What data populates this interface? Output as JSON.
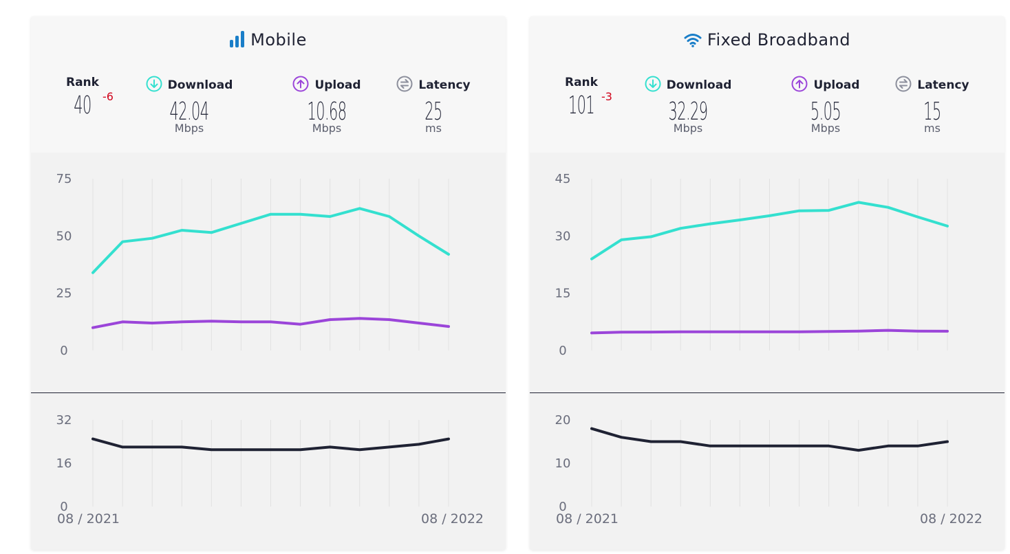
{
  "chart_data": [
    {
      "type": "line",
      "title": "Mobile",
      "stats": {
        "rank": {
          "label": "Rank",
          "value": "40",
          "change": "-6"
        },
        "download": {
          "label": "Download",
          "value": "42.04",
          "unit": "Mbps"
        },
        "upload": {
          "label": "Upload",
          "value": "10.68",
          "unit": "Mbps"
        },
        "latency": {
          "label": "Latency",
          "value": "25",
          "unit": "ms"
        }
      },
      "x_labels": [
        "08 / 2021",
        "08 / 2022"
      ],
      "speed_chart": {
        "ylim": [
          0,
          75
        ],
        "yticks": [
          "0",
          "25",
          "50",
          "75"
        ],
        "series": [
          {
            "color": "#34e0cf",
            "values": [
              34,
              47.5,
              49,
              52.5,
              51.5,
              55.5,
              59.5,
              59.5,
              58.5,
              62,
              58.5,
              50,
              42
            ]
          },
          {
            "color": "#9b45d9",
            "values": [
              10,
              12.5,
              12,
              12.5,
              12.8,
              12.5,
              12.5,
              11.5,
              13.5,
              14,
              13.5,
              12,
              10.5
            ]
          }
        ]
      },
      "latency_chart": {
        "ylim": [
          0,
          32
        ],
        "yticks": [
          "0",
          "16",
          "32"
        ],
        "series": [
          {
            "color": "#1f2233",
            "values": [
              25,
              22,
              22,
              22,
              21,
              21,
              21,
              21,
              22,
              21,
              22,
              23,
              25
            ]
          }
        ]
      }
    },
    {
      "type": "line",
      "title": "Fixed Broadband",
      "stats": {
        "rank": {
          "label": "Rank",
          "value": "101",
          "change": "-3"
        },
        "download": {
          "label": "Download",
          "value": "32.29",
          "unit": "Mbps"
        },
        "upload": {
          "label": "Upload",
          "value": "5.05",
          "unit": "Mbps"
        },
        "latency": {
          "label": "Latency",
          "value": "15",
          "unit": "ms"
        }
      },
      "x_labels": [
        "08 / 2021",
        "08 / 2022"
      ],
      "speed_chart": {
        "ylim": [
          0,
          45
        ],
        "yticks": [
          "0",
          "15",
          "30",
          "45"
        ],
        "series": [
          {
            "color": "#34e0cf",
            "values": [
              24,
              29,
              29.8,
              32,
              33.2,
              34.2,
              35.3,
              36.6,
              36.7,
              38.8,
              37.5,
              35,
              32.6
            ]
          },
          {
            "color": "#9b45d9",
            "values": [
              4.6,
              4.8,
              4.85,
              4.9,
              4.9,
              4.9,
              4.9,
              4.9,
              5.0,
              5.1,
              5.3,
              5.1,
              5.05
            ]
          }
        ]
      },
      "latency_chart": {
        "ylim": [
          0,
          20
        ],
        "yticks": [
          "0",
          "10",
          "20"
        ],
        "series": [
          {
            "color": "#1f2233",
            "values": [
              18,
              16,
              15,
              15,
              14,
              14,
              14,
              14,
              14,
              13,
              14,
              14,
              15
            ]
          }
        ]
      }
    }
  ],
  "icons": {
    "mobile": "signal-bars-icon",
    "fixed": "wifi-icon",
    "download": "download-arrow-icon",
    "upload": "upload-arrow-icon",
    "latency": "latency-arrows-icon"
  },
  "colors": {
    "download": "#34e0cf",
    "upload": "#9b45d9",
    "latency": "#8c8f9c",
    "brand": "#1a7ec8",
    "rank_change": "#d0021b"
  }
}
